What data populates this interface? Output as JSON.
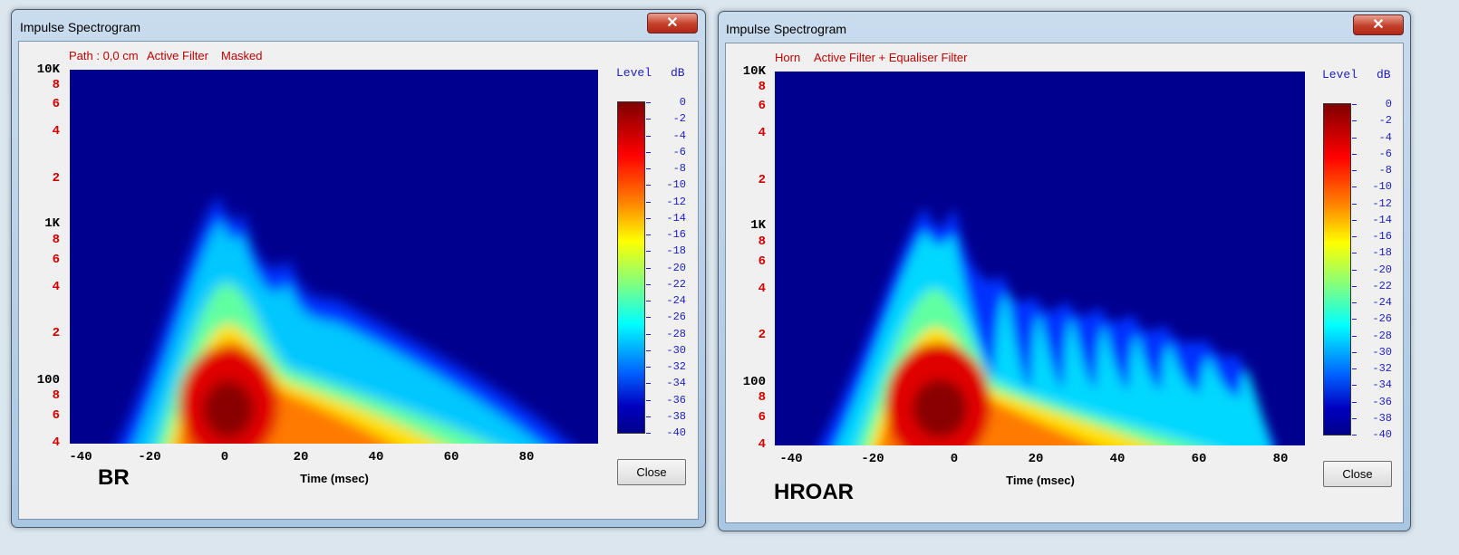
{
  "windows": [
    {
      "title": "Impulse Spectrogram",
      "subtitle": [
        "Path : 0,0 cm",
        "Active Filter",
        "Masked"
      ],
      "y_labels": [
        "10K",
        "8",
        "6",
        "4",
        "2",
        "1K",
        "8",
        "6",
        "4",
        "2",
        "100",
        "8",
        "6",
        "4"
      ],
      "x_labels": [
        -40,
        -20,
        0,
        20,
        40,
        60,
        80
      ],
      "x_label": "Time (msec)",
      "legend_title": "Level",
      "legend_unit": "dB",
      "legend_ticks": [
        0,
        -2,
        -4,
        -6,
        -8,
        -10,
        -12,
        -14,
        -16,
        -18,
        -20,
        -22,
        -24,
        -26,
        -28,
        -30,
        -32,
        -34,
        -36,
        -38,
        -40
      ],
      "close_button": "Close",
      "caption": "BR"
    },
    {
      "title": "Impulse Spectrogram",
      "subtitle": [
        "Horn",
        "Active Filter + Equaliser Filter"
      ],
      "y_labels": [
        "10K",
        "8",
        "6",
        "4",
        "2",
        "1K",
        "8",
        "6",
        "4",
        "2",
        "100",
        "8",
        "6",
        "4"
      ],
      "x_labels": [
        -40,
        -20,
        0,
        20,
        40,
        60,
        80
      ],
      "x_label": "Time (msec)",
      "legend_title": "Level",
      "legend_unit": "dB",
      "legend_ticks": [
        0,
        -2,
        -4,
        -6,
        -8,
        -10,
        -12,
        -14,
        -16,
        -18,
        -20,
        -22,
        -24,
        -26,
        -28,
        -30,
        -32,
        -34,
        -36,
        -38,
        -40
      ],
      "close_button": "Close",
      "caption": "HROAR"
    }
  ]
}
